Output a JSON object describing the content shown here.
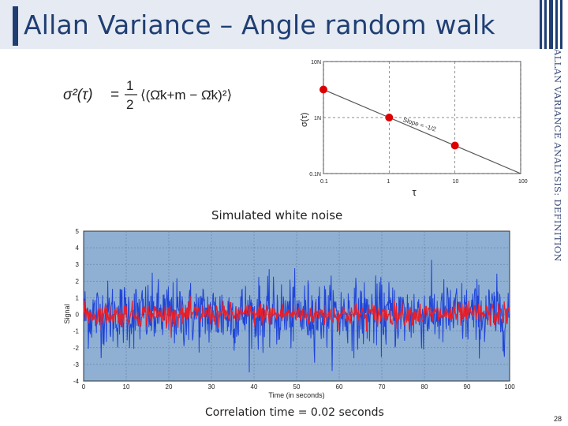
{
  "slide": {
    "title": "Allan Variance – Angle random walk",
    "side_text": "ALLAN VARIANCE ANALYSIS: DEFINITION",
    "page_number": "28",
    "colors": {
      "title": "#1f3f73",
      "title_band": "#e6eaf2"
    }
  },
  "formula": {
    "lhs": "σ²(τ)",
    "equals": "=",
    "frac_num": "1",
    "frac_den": "2",
    "rhs": "⟨(Ω̄k+m − Ω̄k)²⟩"
  },
  "chart_data": [
    {
      "type": "line",
      "x_scale": "log",
      "y_scale": "log",
      "xlim": [
        0.1,
        100
      ],
      "ylim": [
        "0.1N",
        "10N"
      ],
      "xlabel": "τ",
      "ylabel": "σ(τ)",
      "x_ticks": [
        "0.1",
        "1",
        "10",
        "100"
      ],
      "y_ticks": [
        "10N",
        "1N",
        "0.1N"
      ],
      "series": [
        {
          "x": [
            0.1,
            1,
            10,
            100
          ],
          "y": [
            3.16,
            1.0,
            0.316,
            0.1
          ],
          "color": "#555555"
        }
      ],
      "points": {
        "x": [
          0.1,
          1,
          10
        ],
        "y": [
          3.16,
          1.0,
          0.316
        ],
        "color": "#dd0000"
      },
      "annotations": [
        "Slope = -1/2"
      ],
      "grid": true
    },
    {
      "type": "line",
      "title": "Simulated white noise",
      "xlabel": "Time (in seconds)",
      "ylabel": "Signal",
      "xlim": [
        0,
        100
      ],
      "ylim": [
        -4,
        5
      ],
      "x_ticks": [
        "0",
        "10",
        "20",
        "30",
        "40",
        "50",
        "60",
        "70",
        "80",
        "90",
        "100"
      ],
      "y_ticks": [
        "5",
        "4",
        "3",
        "2",
        "1",
        "0",
        "-1",
        "-2",
        "-3",
        "-4"
      ],
      "series": [
        {
          "color": "#1f44d8",
          "amplitude_std": 1.0
        },
        {
          "color": "#e8202a",
          "amplitude_std": 0.35
        }
      ],
      "background": "#8fb0d2",
      "grid": true,
      "caption": "Correlation time = 0.02 seconds"
    }
  ]
}
